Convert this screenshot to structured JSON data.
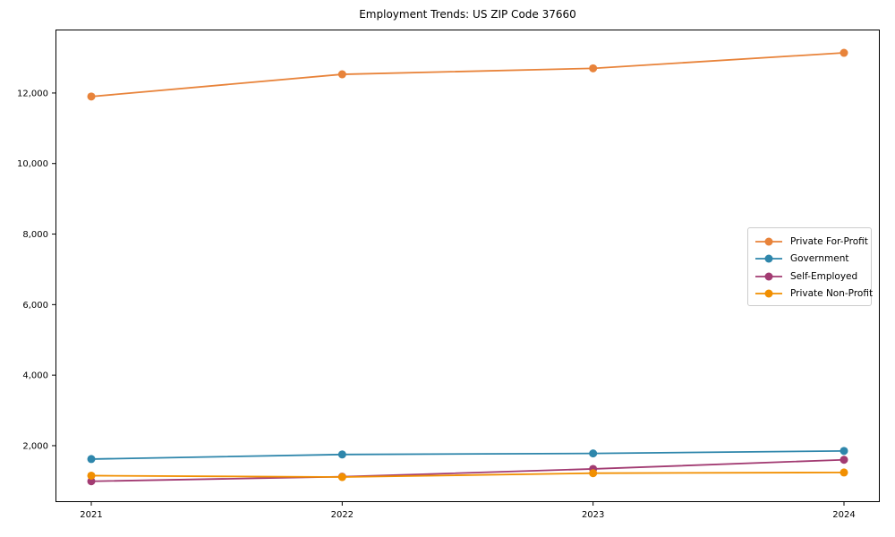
{
  "chart_data": {
    "type": "line",
    "title": "Employment Trends: US ZIP Code 37660",
    "xlabel": "",
    "ylabel": "",
    "x": [
      "2021",
      "2022",
      "2023",
      "2024"
    ],
    "series": [
      {
        "name": "Private For-Profit",
        "color": "#E8833A",
        "values": [
          11900,
          12530,
          12700,
          13140
        ]
      },
      {
        "name": "Government",
        "color": "#2E86AB",
        "values": [
          1620,
          1750,
          1780,
          1850
        ]
      },
      {
        "name": "Self-Employed",
        "color": "#A23B72",
        "values": [
          990,
          1120,
          1340,
          1600
        ]
      },
      {
        "name": "Private Non-Profit",
        "color": "#F18F01",
        "values": [
          1150,
          1110,
          1220,
          1240
        ]
      }
    ],
    "yticks": [
      2000,
      4000,
      6000,
      8000,
      10000,
      12000
    ],
    "ylim": [
      400,
      13800
    ],
    "grid": false,
    "legend_position": "center right",
    "marker": "circle",
    "spine_color": "#000000",
    "text_color": "#000000"
  }
}
